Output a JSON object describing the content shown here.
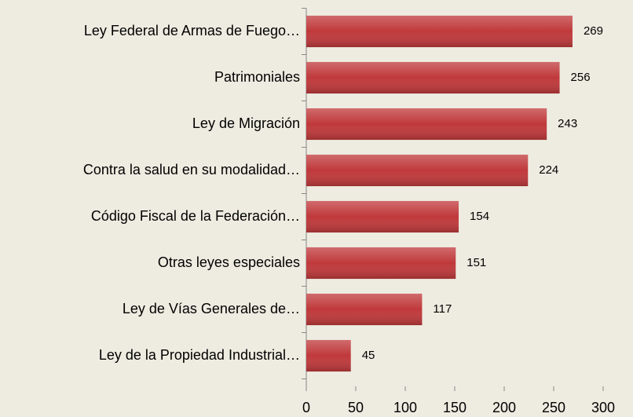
{
  "chart_data": {
    "type": "bar",
    "orientation": "horizontal",
    "categories": [
      "Ley Federal de Armas de Fuego…",
      "Patrimoniales",
      "Ley de Migración",
      "Contra la salud en su modalidad…",
      "Código Fiscal de la Federación…",
      "Otras leyes especiales",
      "Ley de Vías Generales de…",
      "Ley de la Propiedad Industrial…"
    ],
    "values": [
      269,
      256,
      243,
      224,
      154,
      151,
      117,
      45
    ],
    "color": "#c0393b",
    "xlim": [
      0,
      300
    ],
    "xticks": [
      0,
      50,
      100,
      150,
      200,
      250,
      300
    ],
    "grid": false
  }
}
